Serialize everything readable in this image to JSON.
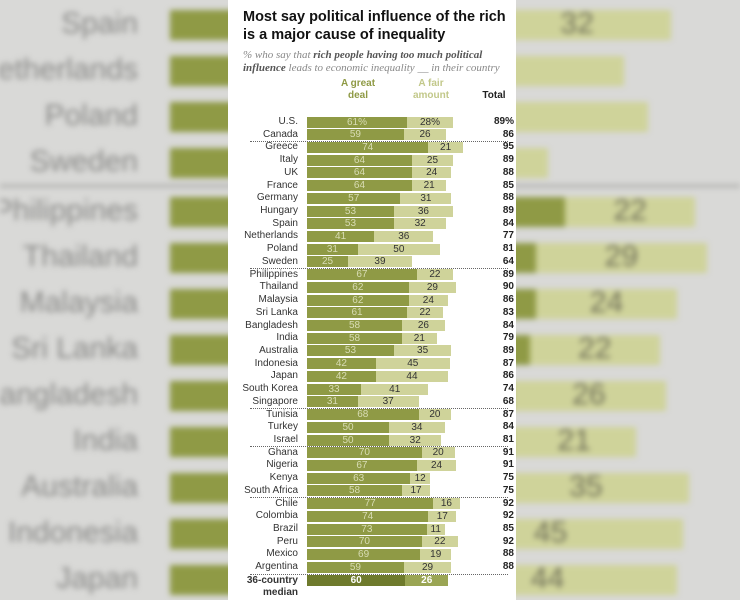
{
  "chart_data": {
    "type": "bar",
    "stacked": true,
    "orientation": "horizontal",
    "title": "Most say political influence of the rich is a major cause of inequality",
    "subtitle_parts": [
      "% who say that ",
      "rich people having too much political influence",
      " leads to economic inequality __ in their country"
    ],
    "series": [
      {
        "name": "A great deal",
        "color": "#8f9a45"
      },
      {
        "name": "A fair amount",
        "color": "#cfd39a"
      }
    ],
    "total_label": "Total",
    "groups": [
      [
        {
          "country": "U.S.",
          "great": 61,
          "fair": 28,
          "total": 89,
          "great_label": "61%",
          "fair_label": "28%",
          "total_label": "89%"
        },
        {
          "country": "Canada",
          "great": 59,
          "fair": 26,
          "total": 86
        }
      ],
      [
        {
          "country": "Greece",
          "great": 74,
          "fair": 21,
          "total": 95
        },
        {
          "country": "Italy",
          "great": 64,
          "fair": 25,
          "total": 89
        },
        {
          "country": "UK",
          "great": 64,
          "fair": 24,
          "total": 88
        },
        {
          "country": "France",
          "great": 64,
          "fair": 21,
          "total": 85
        },
        {
          "country": "Germany",
          "great": 57,
          "fair": 31,
          "total": 88
        },
        {
          "country": "Hungary",
          "great": 53,
          "fair": 36,
          "total": 89
        },
        {
          "country": "Spain",
          "great": 53,
          "fair": 32,
          "total": 84
        },
        {
          "country": "Netherlands",
          "great": 41,
          "fair": 36,
          "total": 77
        },
        {
          "country": "Poland",
          "great": 31,
          "fair": 50,
          "total": 81
        },
        {
          "country": "Sweden",
          "great": 25,
          "fair": 39,
          "total": 64
        }
      ],
      [
        {
          "country": "Philippines",
          "great": 67,
          "fair": 22,
          "total": 89
        },
        {
          "country": "Thailand",
          "great": 62,
          "fair": 29,
          "total": 90
        },
        {
          "country": "Malaysia",
          "great": 62,
          "fair": 24,
          "total": 86
        },
        {
          "country": "Sri Lanka",
          "great": 61,
          "fair": 22,
          "total": 83
        },
        {
          "country": "Bangladesh",
          "great": 58,
          "fair": 26,
          "total": 84
        },
        {
          "country": "India",
          "great": 58,
          "fair": 21,
          "total": 79
        },
        {
          "country": "Australia",
          "great": 53,
          "fair": 35,
          "total": 89
        },
        {
          "country": "Indonesia",
          "great": 42,
          "fair": 45,
          "total": 87
        },
        {
          "country": "Japan",
          "great": 42,
          "fair": 44,
          "total": 86
        },
        {
          "country": "South Korea",
          "great": 33,
          "fair": 41,
          "total": 74
        },
        {
          "country": "Singapore",
          "great": 31,
          "fair": 37,
          "total": 68
        }
      ],
      [
        {
          "country": "Tunisia",
          "great": 68,
          "fair": 20,
          "total": 87
        },
        {
          "country": "Turkey",
          "great": 50,
          "fair": 34,
          "total": 84
        },
        {
          "country": "Israel",
          "great": 50,
          "fair": 32,
          "total": 81
        }
      ],
      [
        {
          "country": "Ghana",
          "great": 70,
          "fair": 20,
          "total": 91
        },
        {
          "country": "Nigeria",
          "great": 67,
          "fair": 24,
          "total": 91
        },
        {
          "country": "Kenya",
          "great": 63,
          "fair": 12,
          "total": 75
        },
        {
          "country": "South Africa",
          "great": 58,
          "fair": 17,
          "total": 75
        }
      ],
      [
        {
          "country": "Chile",
          "great": 77,
          "fair": 16,
          "total": 92
        },
        {
          "country": "Colombia",
          "great": 74,
          "fair": 17,
          "total": 92
        },
        {
          "country": "Brazil",
          "great": 73,
          "fair": 11,
          "total": 85
        },
        {
          "country": "Peru",
          "great": 70,
          "fair": 22,
          "total": 92
        },
        {
          "country": "Mexico",
          "great": 69,
          "fair": 19,
          "total": 88
        },
        {
          "country": "Argentina",
          "great": 59,
          "fair": 29,
          "total": 88
        }
      ]
    ],
    "median": {
      "label_line1": "36-country",
      "label_line2": "median",
      "great": 60,
      "fair": 26
    },
    "median_colors": {
      "great": "#6e7a2c",
      "fair": "#9aa554"
    },
    "background_rows": [
      "Spain",
      "Netherlands",
      "Poland",
      "Sweden",
      "Philippines",
      "Thailand",
      "Malaysia",
      "Sri Lanka",
      "Bangladesh",
      "India",
      "Australia",
      "Indonesia",
      "Japan"
    ]
  }
}
